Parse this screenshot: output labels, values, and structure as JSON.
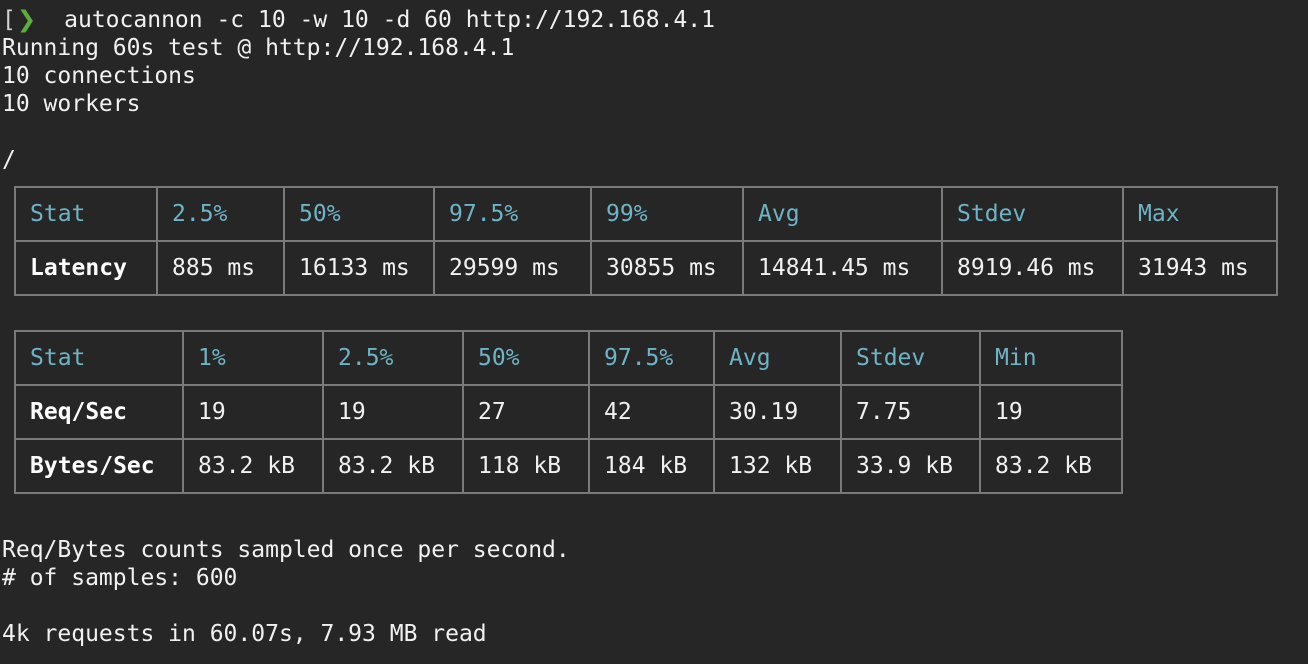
{
  "colors": {
    "background": "#262626",
    "foreground": "#f1f1f1",
    "accent_cyan": "#6fb4c6",
    "prompt_green": "#5cad3c",
    "table_border": "#7a7a7a"
  },
  "terminal": {
    "prompt": {
      "bracket": "[",
      "chevron": "❯"
    },
    "command": "autocannon -c 10 -w 10 -d 60 http://192.168.4.1",
    "info": {
      "running": "Running 60s test @ http://192.168.4.1",
      "connections": "10 connections",
      "workers": "10 workers",
      "path": "/"
    },
    "footer": {
      "sampled_note": "Req/Bytes counts sampled once per second.",
      "samples_count": "# of samples: 600",
      "summary": "4k requests in 60.07s, 7.93 MB read"
    }
  },
  "latency_table": {
    "headers": [
      "Stat",
      "2.5%",
      "50%",
      "97.5%",
      "99%",
      "Avg",
      "Stdev",
      "Max"
    ],
    "rows": [
      {
        "label": "Latency",
        "values": [
          "885 ms",
          "16133 ms",
          "29599 ms",
          "30855 ms",
          "14841.45 ms",
          "8919.46 ms",
          "31943 ms"
        ]
      }
    ]
  },
  "throughput_table": {
    "headers": [
      "Stat",
      "1%",
      "2.5%",
      "50%",
      "97.5%",
      "Avg",
      "Stdev",
      "Min"
    ],
    "rows": [
      {
        "label": "Req/Sec",
        "values": [
          "19",
          "19",
          "27",
          "42",
          "30.19",
          "7.75",
          "19"
        ]
      },
      {
        "label": "Bytes/Sec",
        "values": [
          "83.2 kB",
          "83.2 kB",
          "118 kB",
          "184 kB",
          "132 kB",
          "33.9 kB",
          "83.2 kB"
        ]
      }
    ]
  }
}
